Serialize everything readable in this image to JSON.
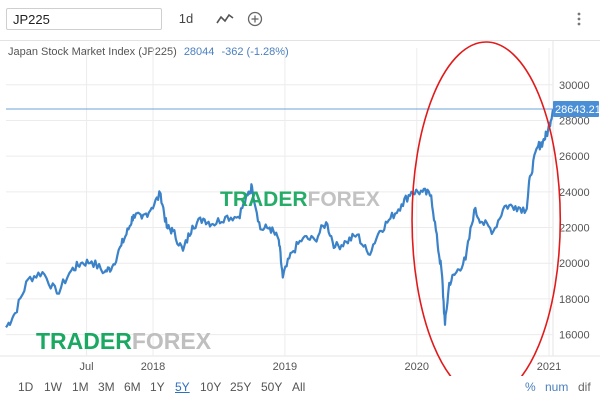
{
  "toolbar": {
    "symbol_value": "JP225",
    "interval_label": "1d",
    "style_icon": "line-chart-icon",
    "indicator_icon": "plus-circle-icon",
    "menu_icon": "vertical-dots-icon"
  },
  "header": {
    "name": "Japan Stock Market Index (JP225)",
    "price": "28044",
    "change": "-362 (-1.28%)"
  },
  "price_label": "28643.21",
  "watermark": {
    "text_green": "TRADER",
    "text_grey": "FOREX",
    "icon": "candlestick-icon"
  },
  "range_buttons": [
    "1D",
    "1W",
    "1M",
    "3M",
    "6M",
    "1Y",
    "5Y",
    "10Y",
    "25Y",
    "50Y",
    "All"
  ],
  "range_active": "5Y",
  "modes": [
    "%",
    "num",
    "dif"
  ],
  "colors": {
    "line": "#3b82c8",
    "accent": "#2f6fbf",
    "annotation": "#e11b1b",
    "watermark_green": "#1aa862"
  },
  "chart_data": {
    "type": "line",
    "x_tick_labels": [
      "Jul",
      "2018",
      "2019",
      "2020",
      "2021"
    ],
    "x_tick_dates": [
      "2017-07-01",
      "2018-01-01",
      "2019-01-01",
      "2020-01-01",
      "2021-01-01"
    ],
    "y_ticks": [
      16000,
      18000,
      20000,
      22000,
      24000,
      26000,
      28000,
      30000
    ],
    "y_tick_labels": [
      "16000",
      "18000",
      "20000",
      "22000",
      "24000",
      "26000",
      "28000",
      "30000"
    ],
    "ylim": [
      14800,
      31500
    ],
    "xlim": [
      "2016-11-20",
      "2021-01-12"
    ],
    "last_value": 28643.21,
    "grid": true,
    "annotation": "ellipse around 2020 rally",
    "series": [
      {
        "x": [
          "2016-11-20",
          "2016-12-15",
          "2017-01-20",
          "2017-03-01",
          "2017-04-10",
          "2017-05-20",
          "2017-06-15",
          "2017-07-15",
          "2017-08-20",
          "2017-09-10",
          "2017-10-05",
          "2017-10-25",
          "2017-11-08",
          "2017-12-01",
          "2017-12-28",
          "2018-01-22",
          "2018-02-08",
          "2018-02-25",
          "2018-03-25",
          "2018-04-20",
          "2018-05-20",
          "2018-06-15",
          "2018-07-20",
          "2018-08-25",
          "2018-09-20",
          "2018-10-02",
          "2018-10-25",
          "2018-11-20",
          "2018-12-15",
          "2018-12-26",
          "2019-01-20",
          "2019-02-20",
          "2019-03-25",
          "2019-04-25",
          "2019-05-20",
          "2019-06-20",
          "2019-07-20",
          "2019-08-20",
          "2019-09-20",
          "2019-10-20",
          "2019-11-20",
          "2019-12-17",
          "2020-01-17",
          "2020-02-10",
          "2020-02-28",
          "2020-03-10",
          "2020-03-19",
          "2020-03-31",
          "2020-04-20",
          "2020-05-15",
          "2020-06-08",
          "2020-06-30",
          "2020-07-31",
          "2020-08-31",
          "2020-09-30",
          "2020-10-30",
          "2020-11-10",
          "2020-11-30",
          "2020-12-15",
          "2020-12-29",
          "2021-01-12"
        ],
        "values": [
          16400,
          17200,
          19100,
          19500,
          18300,
          19600,
          20000,
          20100,
          19500,
          19800,
          21000,
          21900,
          22700,
          22500,
          23100,
          23900,
          22000,
          21800,
          20700,
          22100,
          22500,
          22200,
          22600,
          22600,
          23800,
          24300,
          21900,
          22000,
          21300,
          19200,
          20600,
          21400,
          21300,
          22300,
          20900,
          21200,
          21600,
          20500,
          21800,
          22500,
          23300,
          24000,
          24000,
          23800,
          21000,
          19500,
          16550,
          18900,
          19500,
          20200,
          23000,
          22300,
          21800,
          23200,
          23200,
          23000,
          24900,
          26500,
          26800,
          27400,
          28643
        ]
      }
    ]
  }
}
